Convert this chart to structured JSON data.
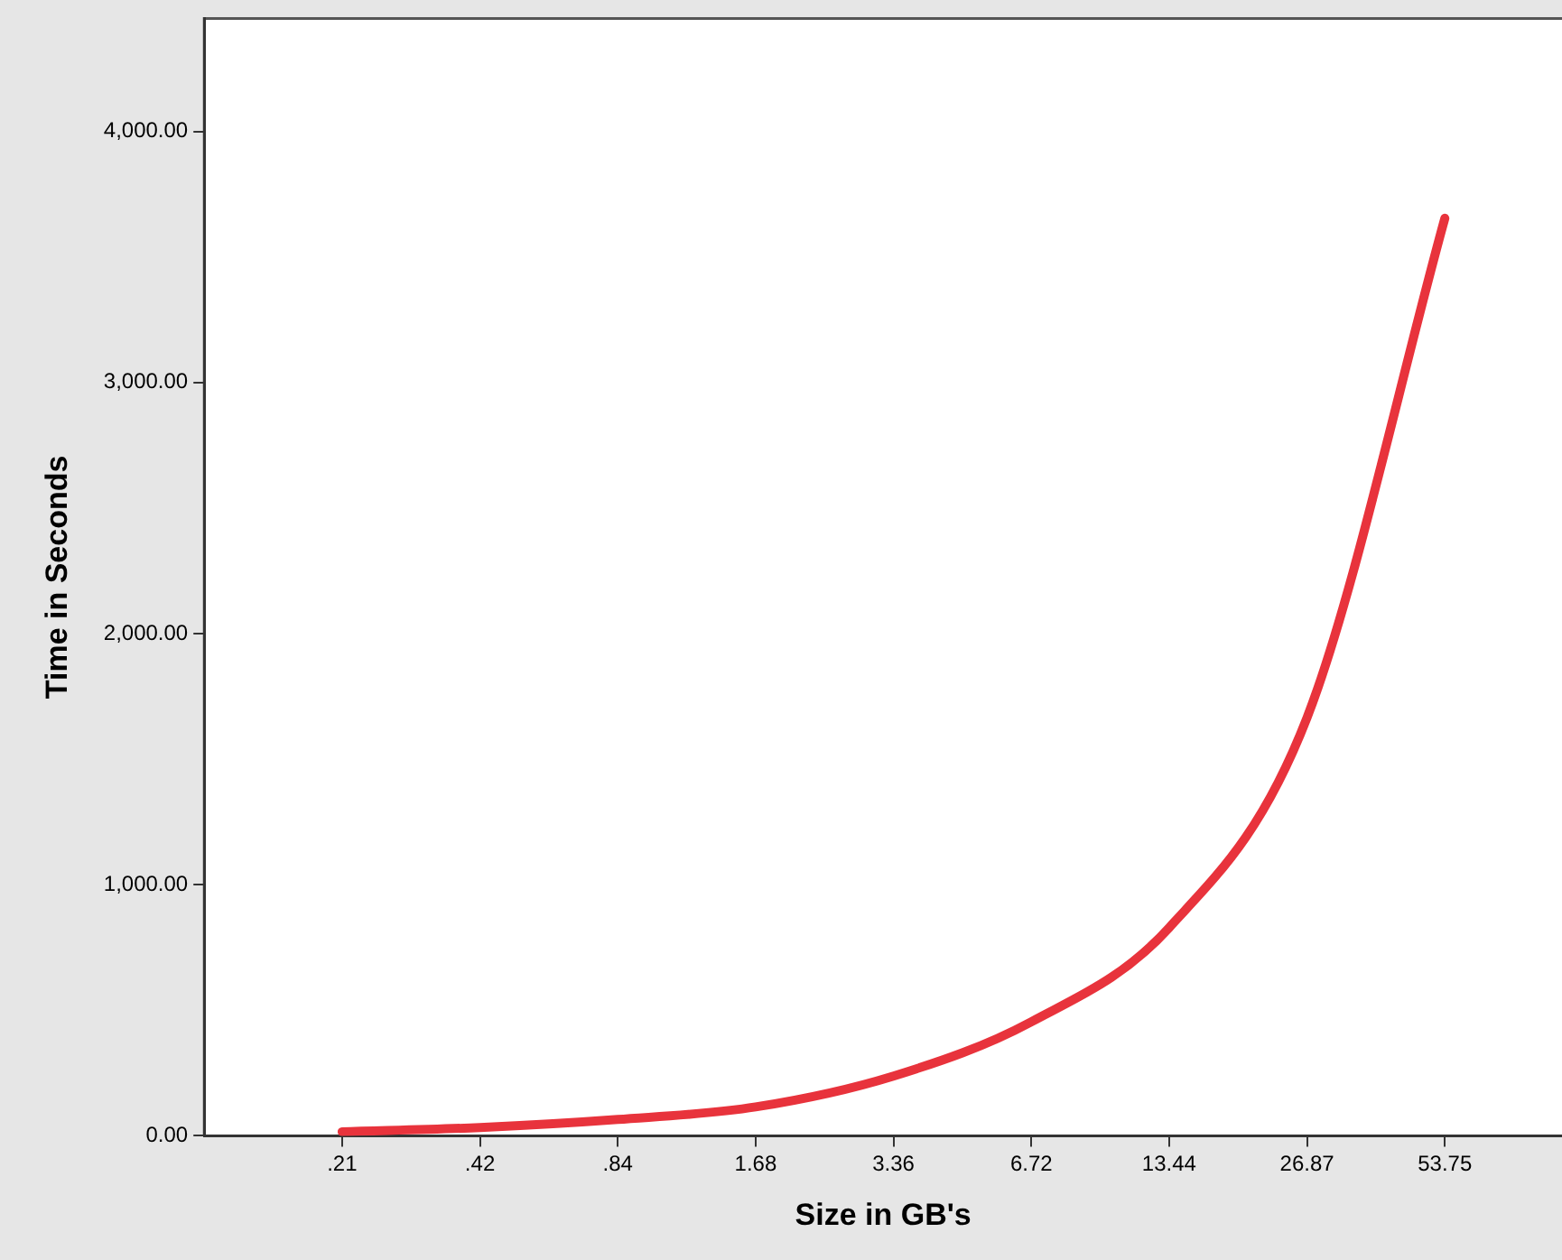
{
  "chart_data": {
    "type": "line",
    "xlabel": "Size in GB's",
    "ylabel": "Time in Seconds",
    "categories": [
      ".21",
      ".42",
      ".84",
      "1.68",
      "3.36",
      "6.72",
      "13.44",
      "26.87",
      "53.75"
    ],
    "series": [
      {
        "color": "#e8333c",
        "values": [
          16,
          33,
          65,
          115,
          238,
          454,
          829,
          1665,
          3654
        ]
      }
    ],
    "ylim": [
      0,
      4450
    ],
    "yticks": [
      {
        "value": 0,
        "label": "0.00"
      },
      {
        "value": 1000,
        "label": "1,000.00"
      },
      {
        "value": 2000,
        "label": "2,000.00"
      },
      {
        "value": 3000,
        "label": "3,000.00"
      },
      {
        "value": 4000,
        "label": "4,000.00"
      }
    ],
    "grid": false,
    "legend": false
  }
}
